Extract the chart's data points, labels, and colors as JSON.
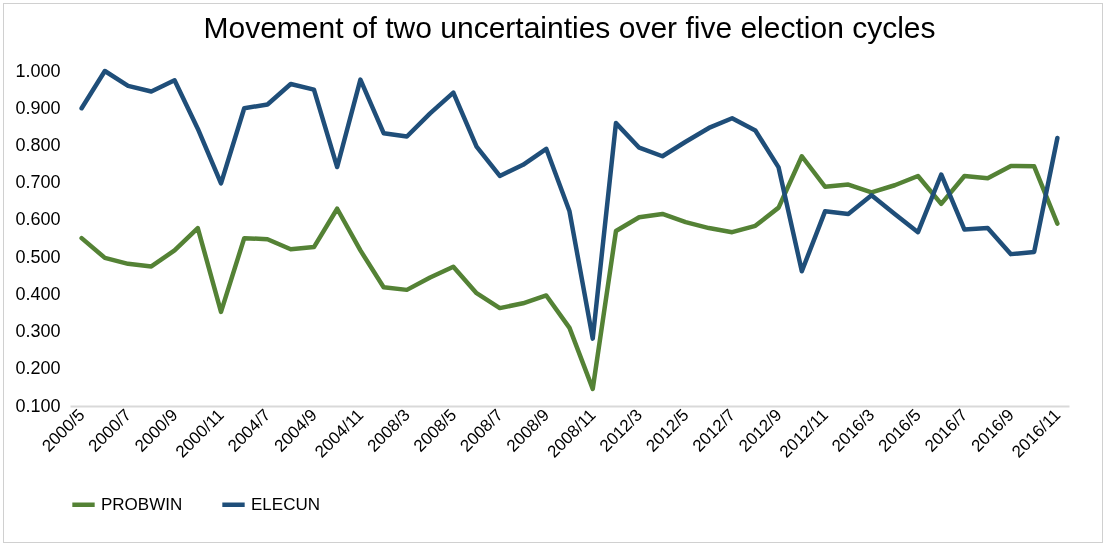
{
  "chart_data": {
    "type": "line",
    "title": "Movement of two uncertainties over five election cycles",
    "categories": [
      "2000/5",
      null,
      "2000/7",
      null,
      "2000/9",
      null,
      "2000/11",
      null,
      "2004/7",
      null,
      "2004/9",
      null,
      "2004/11",
      null,
      "2008/3",
      null,
      "2008/5",
      null,
      "2008/7",
      null,
      "2008/9",
      null,
      "2008/11",
      null,
      "2012/3",
      null,
      "2012/5",
      null,
      "2012/7",
      null,
      "2012/9",
      null,
      "2012/11",
      null,
      "2016/3",
      null,
      "2016/5",
      null,
      "2016/7",
      null,
      "2016/9",
      null,
      "2016/11"
    ],
    "series": [
      {
        "name": "PROBWIN",
        "color": "#548235",
        "values": [
          0.551,
          0.498,
          0.482,
          0.475,
          0.518,
          0.578,
          0.353,
          0.551,
          0.548,
          0.521,
          0.527,
          0.63,
          0.518,
          0.419,
          0.412,
          0.445,
          0.474,
          0.403,
          0.363,
          0.376,
          0.397,
          0.31,
          0.146,
          0.57,
          0.607,
          0.616,
          0.594,
          0.578,
          0.567,
          0.584,
          0.633,
          0.771,
          0.689,
          0.695,
          0.674,
          0.693,
          0.718,
          0.643,
          0.718,
          0.712,
          0.745,
          0.744,
          0.59
        ]
      },
      {
        "name": "ELECUN",
        "color": "#1f4e79",
        "values": [
          0.9,
          1.0,
          0.96,
          0.945,
          0.975,
          0.845,
          0.698,
          0.9,
          0.91,
          0.965,
          0.95,
          0.742,
          0.977,
          0.833,
          0.824,
          0.886,
          0.942,
          0.797,
          0.718,
          0.748,
          0.791,
          0.623,
          0.281,
          0.86,
          0.794,
          0.771,
          0.81,
          0.847,
          0.873,
          0.84,
          0.741,
          0.462,
          0.623,
          0.616,
          0.666,
          0.616,
          0.567,
          0.722,
          0.574,
          0.578,
          0.508,
          0.514,
          0.82
        ]
      }
    ],
    "ylim": [
      0.1,
      1.0
    ],
    "yticks": [
      {
        "value": 0.1,
        "label": "0.100"
      },
      {
        "value": 0.2,
        "label": "0.200"
      },
      {
        "value": 0.3,
        "label": "0.300"
      },
      {
        "value": 0.4,
        "label": "0.400"
      },
      {
        "value": 0.5,
        "label": "0.500"
      },
      {
        "value": 0.6,
        "label": "0.600"
      },
      {
        "value": 0.7,
        "label": "0.700"
      },
      {
        "value": 0.8,
        "label": "0.800"
      },
      {
        "value": 0.9,
        "label": "0.900"
      },
      {
        "value": 1.0,
        "label": "1.000"
      }
    ],
    "grid": false,
    "legend": "bottom",
    "line_style": "solid",
    "marker": "none"
  }
}
